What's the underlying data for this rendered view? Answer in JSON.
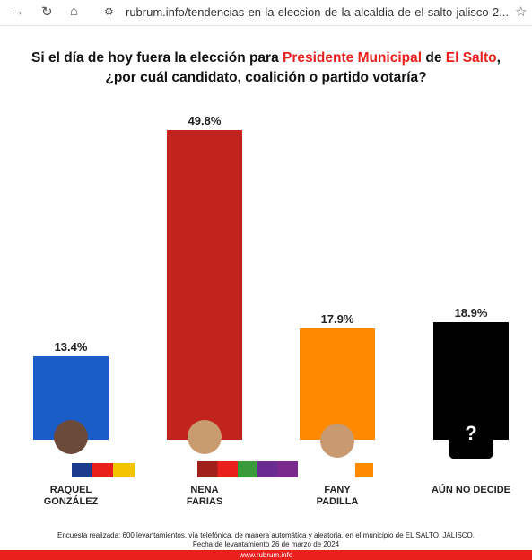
{
  "browser": {
    "url": "rubrum.info/tendencias-en-la-eleccion-de-la-alcaldia-de-el-salto-jalisco-2..."
  },
  "chart_data": {
    "type": "bar",
    "title_segments": [
      "Si el día de hoy fuera la elección para ",
      "Presidente Municipal",
      " de ",
      "El Salto",
      ","
    ],
    "subtitle": "¿por cuál candidato, coalición o partido votaría?",
    "categories": [
      "RAQUEL\nGONZÁLEZ",
      "NENA\nFARIAS",
      "FANY\nPADILLA",
      "AÚN NO DECIDE"
    ],
    "values": [
      13.4,
      49.8,
      17.9,
      18.9
    ],
    "value_labels": [
      "13.4%",
      "49.8%",
      "17.9%",
      "18.9%"
    ],
    "colors": [
      "#1a5cc8",
      "#c1231d",
      "#ff8a00",
      "#000000"
    ]
  },
  "footnote": [
    "Encuesta realizada: 600 levantamientos, vía telefónica, de manera automática y aleatoria, en el municipio de EL SALTO, JALISCO.",
    "Fecha de levantamiento 26 de marzo de 2024"
  ],
  "website": "www.rubrum.info"
}
